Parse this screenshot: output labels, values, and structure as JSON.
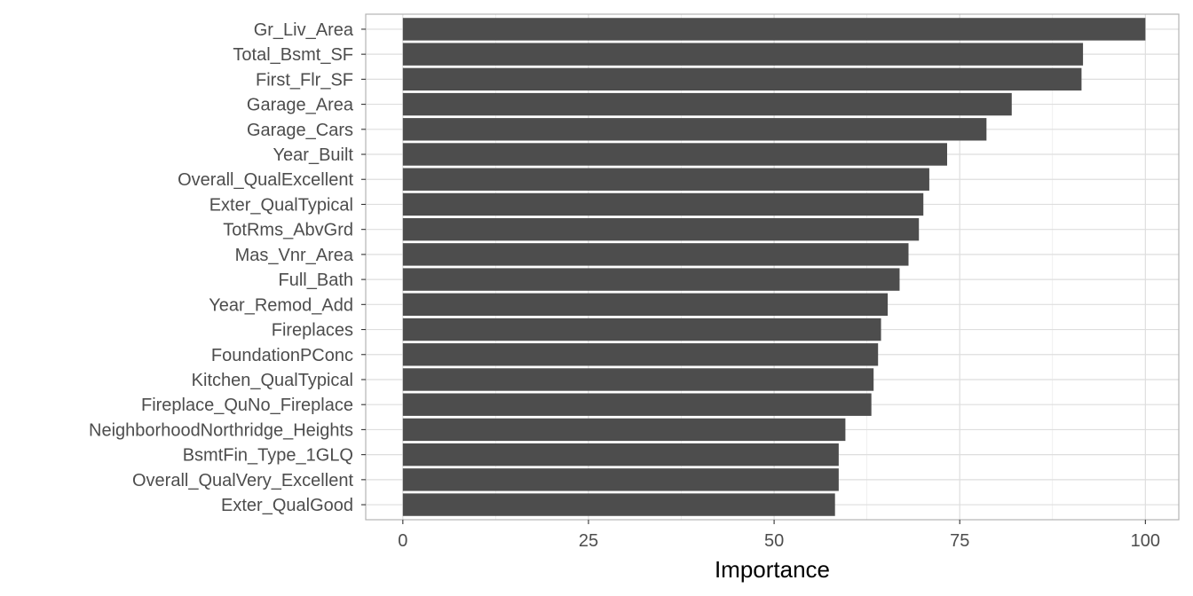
{
  "chart_data": {
    "type": "bar",
    "orientation": "horizontal",
    "title": "",
    "xlabel": "Importance",
    "ylabel": "",
    "categories": [
      "Gr_Liv_Area",
      "Total_Bsmt_SF",
      "First_Flr_SF",
      "Garage_Area",
      "Garage_Cars",
      "Year_Built",
      "Overall_QualExcellent",
      "Exter_QualTypical",
      "TotRms_AbvGrd",
      "Mas_Vnr_Area",
      "Full_Bath",
      "Year_Remod_Add",
      "Fireplaces",
      "FoundationPConc",
      "Kitchen_QualTypical",
      "Fireplace_QuNo_Fireplace",
      "NeighborhoodNorthridge_Heights",
      "BsmtFin_Type_1GLQ",
      "Overall_QualVery_Excellent",
      "Exter_QualGood"
    ],
    "values": [
      100,
      91.6,
      91.4,
      82.0,
      78.6,
      73.3,
      70.9,
      70.1,
      69.5,
      68.1,
      66.9,
      65.3,
      64.4,
      64.0,
      63.4,
      63.1,
      59.6,
      58.7,
      58.7,
      58.2
    ],
    "xlim": [
      -5,
      104.5
    ],
    "xticks": [
      0,
      25,
      50,
      75,
      100
    ],
    "xtick_labels": [
      "0",
      "25",
      "50",
      "75",
      "100"
    ],
    "grid": true,
    "legend": "none",
    "bar_color": "#4d4d4d",
    "grid_color": "#e6e6e6",
    "panel_border_color": "#b3b3b3"
  }
}
